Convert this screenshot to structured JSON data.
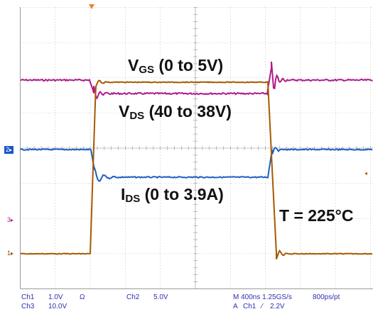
{
  "colors": {
    "background": "#ffffff",
    "grid": "#9a9a9a",
    "ch1": "#a55a00",
    "ch2": "#1f5fc4",
    "ch3": "#b01b8a",
    "status_text": "#2f2fb0",
    "trigger_marker": "#f08020"
  },
  "annotations": {
    "vgs": {
      "main": "V",
      "sub": "GS",
      "rest": " (0 to 5V)"
    },
    "vds": {
      "main": "V",
      "sub": "DS",
      "rest": " (40 to 38V)"
    },
    "ids": {
      "main": "I",
      "sub": "DS",
      "rest": " (0 to 3.9A)"
    },
    "temperature": "T = 225°C"
  },
  "channel_markers": {
    "ch2": "2",
    "ch3": "3",
    "ch1": "1"
  },
  "status_bar": {
    "ch1_label": "Ch1",
    "ch1_scale": "1.0V",
    "ch1_coupling": "Ω",
    "ch2_label": "Ch2",
    "ch2_scale": "5.0V",
    "ch3_label": "Ch3",
    "ch3_scale": "10.0V",
    "timebase": "M 400ns 1.25GS/s",
    "record": "800ps/pt",
    "trigger_mode": "A",
    "trigger_source": "Ch1",
    "trigger_slope": "⁄",
    "trigger_level": "2.2V"
  },
  "waveforms": {
    "ch3_vds": "VDS trace",
    "ch1_vgs": "VGS trace",
    "ch2_ids": "IDS trace"
  }
}
